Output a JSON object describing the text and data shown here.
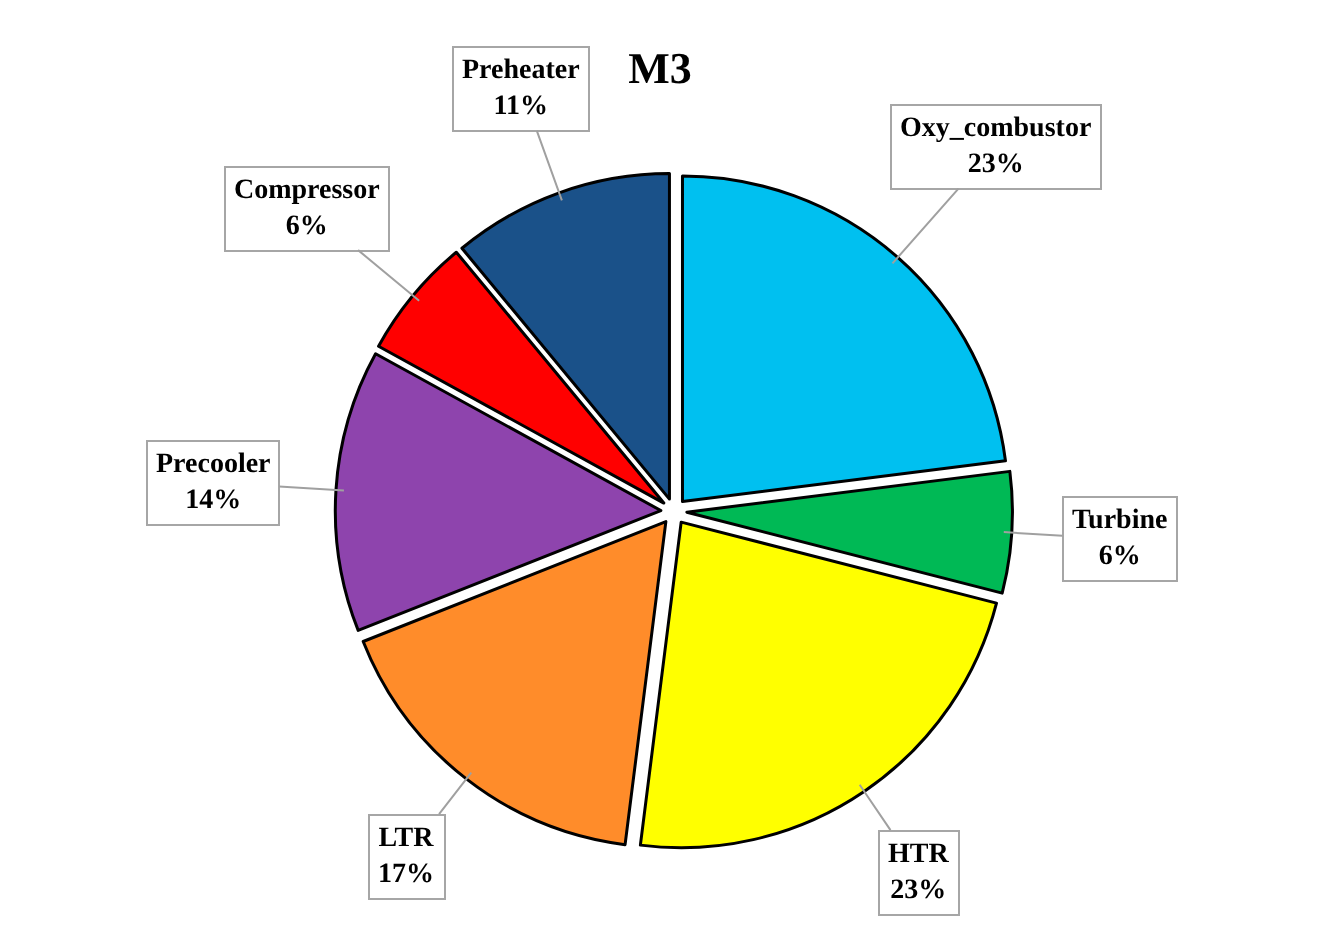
{
  "chart_data": {
    "type": "pie",
    "title": "M3",
    "categories": [
      "Oxy_combustor",
      "Turbine",
      "HTR",
      "LTR",
      "Precooler",
      "Compressor",
      "Preheater"
    ],
    "values": [
      23,
      6,
      23,
      17,
      14,
      6,
      11
    ],
    "value_labels": [
      "23%",
      "6%",
      "23%",
      "17%",
      "14%",
      "6%",
      "11%"
    ],
    "colors": [
      "#00c0f0",
      "#00b955",
      "#ffff00",
      "#ff8c2a",
      "#8e44ad",
      "#ff0000",
      "#1a5189"
    ]
  }
}
